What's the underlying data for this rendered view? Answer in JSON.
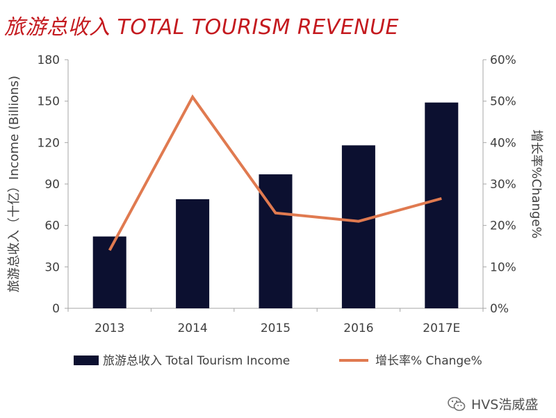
{
  "chart_data": {
    "type": "bar+line",
    "title": "旅游总收入 TOTAL TOURISM REVENUE",
    "categories": [
      "2013",
      "2014",
      "2015",
      "2016",
      "2017E"
    ],
    "series": [
      {
        "name": "旅游总收入 Total Tourism Income",
        "type": "bar",
        "axis": "left",
        "color": "#0c1030",
        "values": [
          52,
          79,
          97,
          118,
          149
        ]
      },
      {
        "name": "增长率% Change%",
        "type": "line",
        "axis": "right",
        "color": "#e07a50",
        "values": [
          14,
          51,
          23,
          21,
          26.5
        ]
      }
    ],
    "ylabel": "旅游总收入（十亿）Income (Billions)",
    "y2label": "增长率%Change%",
    "ylim": [
      0,
      180
    ],
    "yticks": [
      "0",
      "30",
      "60",
      "90",
      "120",
      "150",
      "180"
    ],
    "y2lim": [
      0,
      60
    ],
    "y2ticks": [
      "0%",
      "10%",
      "20%",
      "30%",
      "40%",
      "50%",
      "60%"
    ],
    "grid": false,
    "legend_position": "bottom"
  },
  "watermark": {
    "icon": "wechat-icon",
    "text": "HVS浩威盛"
  }
}
